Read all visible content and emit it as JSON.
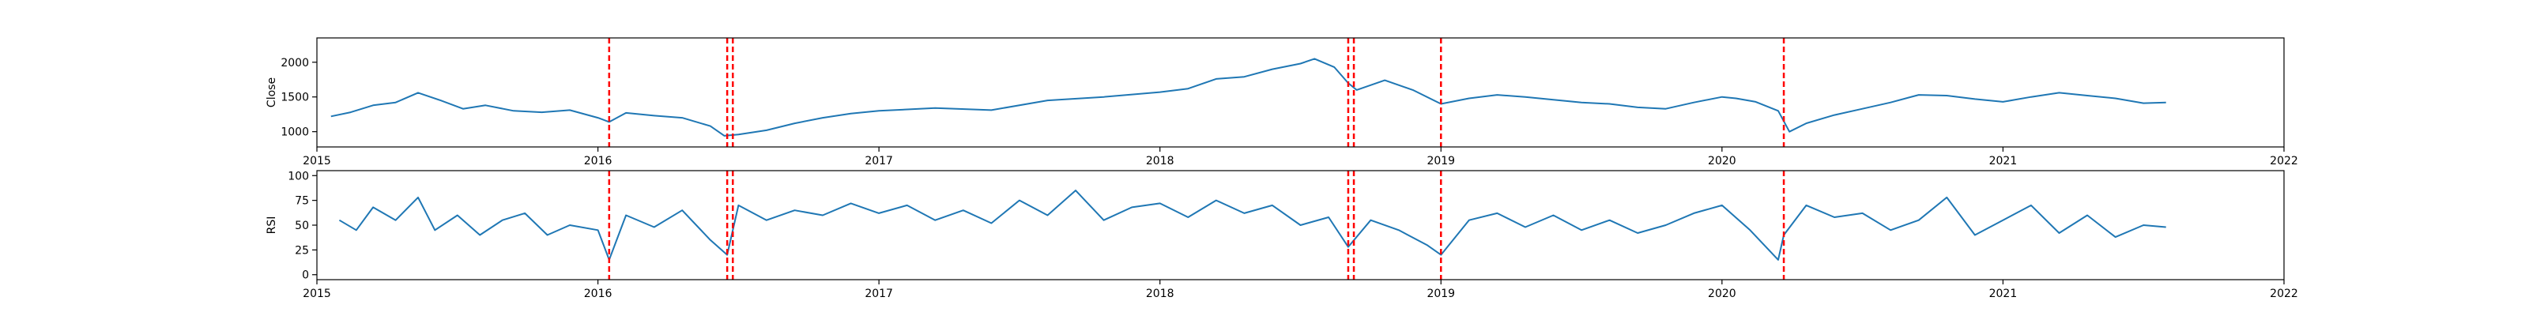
{
  "chart_data": [
    {
      "type": "line",
      "ylabel": "Close",
      "xlabel": "",
      "xlim": [
        2015.0,
        2022.0
      ],
      "ylim": [
        780,
        2350
      ],
      "x_ticks": [
        "2015",
        "2016",
        "2017",
        "2018",
        "2019",
        "2020",
        "2021",
        "2022"
      ],
      "y_ticks": [
        1000,
        1500,
        2000
      ],
      "line_color": "#1f77b4",
      "series": [
        {
          "x": [
            2015.05,
            2015.12,
            2015.2,
            2015.28,
            2015.36,
            2015.44,
            2015.52,
            2015.6,
            2015.7,
            2015.8,
            2015.9,
            2016.0,
            2016.04,
            2016.1,
            2016.2,
            2016.3,
            2016.4,
            2016.45,
            2016.5,
            2016.6,
            2016.7,
            2016.8,
            2016.9,
            2017.0,
            2017.2,
            2017.4,
            2017.6,
            2017.8,
            2018.0,
            2018.1,
            2018.2,
            2018.3,
            2018.4,
            2018.5,
            2018.55,
            2018.62,
            2018.67,
            2018.7,
            2018.8,
            2018.9,
            2019.0,
            2019.1,
            2019.2,
            2019.3,
            2019.4,
            2019.5,
            2019.6,
            2019.7,
            2019.8,
            2019.9,
            2020.0,
            2020.05,
            2020.12,
            2020.2,
            2020.24,
            2020.3,
            2020.4,
            2020.5,
            2020.6,
            2020.7,
            2020.8,
            2020.9,
            2021.0,
            2021.1,
            2021.2,
            2021.3,
            2021.4,
            2021.5,
            2021.58
          ],
          "y": [
            1220,
            1280,
            1380,
            1420,
            1560,
            1450,
            1330,
            1380,
            1300,
            1280,
            1310,
            1200,
            1140,
            1270,
            1230,
            1200,
            1080,
            940,
            960,
            1020,
            1120,
            1200,
            1260,
            1300,
            1340,
            1310,
            1450,
            1500,
            1570,
            1620,
            1760,
            1790,
            1900,
            1980,
            2050,
            1930,
            1700,
            1600,
            1740,
            1600,
            1400,
            1480,
            1530,
            1500,
            1460,
            1420,
            1400,
            1350,
            1330,
            1420,
            1500,
            1480,
            1430,
            1300,
            1000,
            1120,
            1240,
            1330,
            1420,
            1530,
            1520,
            1470,
            1430,
            1500,
            1560,
            1520,
            1480,
            1410,
            1420
          ]
        }
      ],
      "vlines": [
        2016.04,
        2016.46,
        2016.48,
        2018.67,
        2018.69,
        2019.0,
        2020.22
      ],
      "vline_color": "#ff0000"
    },
    {
      "type": "line",
      "ylabel": "RSI",
      "xlabel": "",
      "xlim": [
        2015.0,
        2022.0
      ],
      "ylim": [
        -5,
        105
      ],
      "x_ticks": [
        "2015",
        "2016",
        "2017",
        "2018",
        "2019",
        "2020",
        "2021",
        "2022"
      ],
      "y_ticks": [
        0,
        25,
        50,
        75,
        100
      ],
      "line_color": "#1f77b4",
      "series": [
        {
          "x": [
            2015.08,
            2015.14,
            2015.2,
            2015.28,
            2015.36,
            2015.42,
            2015.5,
            2015.58,
            2015.66,
            2015.74,
            2015.82,
            2015.9,
            2016.0,
            2016.04,
            2016.1,
            2016.2,
            2016.3,
            2016.4,
            2016.46,
            2016.5,
            2016.6,
            2016.7,
            2016.8,
            2016.9,
            2017.0,
            2017.1,
            2017.2,
            2017.3,
            2017.4,
            2017.5,
            2017.6,
            2017.7,
            2017.8,
            2017.9,
            2018.0,
            2018.1,
            2018.2,
            2018.3,
            2018.4,
            2018.5,
            2018.6,
            2018.67,
            2018.75,
            2018.85,
            2018.95,
            2019.0,
            2019.1,
            2019.2,
            2019.3,
            2019.4,
            2019.5,
            2019.6,
            2019.7,
            2019.8,
            2019.9,
            2020.0,
            2020.1,
            2020.2,
            2020.22,
            2020.3,
            2020.4,
            2020.5,
            2020.6,
            2020.7,
            2020.8,
            2020.9,
            2021.0,
            2021.1,
            2021.2,
            2021.3,
            2021.4,
            2021.5,
            2021.58
          ],
          "y": [
            55,
            45,
            68,
            55,
            78,
            45,
            60,
            40,
            55,
            62,
            40,
            50,
            45,
            15,
            60,
            48,
            65,
            35,
            20,
            70,
            55,
            65,
            60,
            72,
            62,
            70,
            55,
            65,
            52,
            75,
            60,
            85,
            55,
            68,
            72,
            58,
            75,
            62,
            70,
            50,
            58,
            28,
            55,
            45,
            30,
            20,
            55,
            62,
            48,
            60,
            45,
            55,
            42,
            50,
            62,
            70,
            45,
            15,
            40,
            70,
            58,
            62,
            45,
            55,
            78,
            40,
            55,
            70,
            42,
            60,
            38,
            50,
            48
          ]
        }
      ],
      "vlines": [
        2016.04,
        2016.46,
        2016.48,
        2018.67,
        2018.69,
        2019.0,
        2020.22
      ],
      "vline_color": "#ff0000"
    }
  ]
}
